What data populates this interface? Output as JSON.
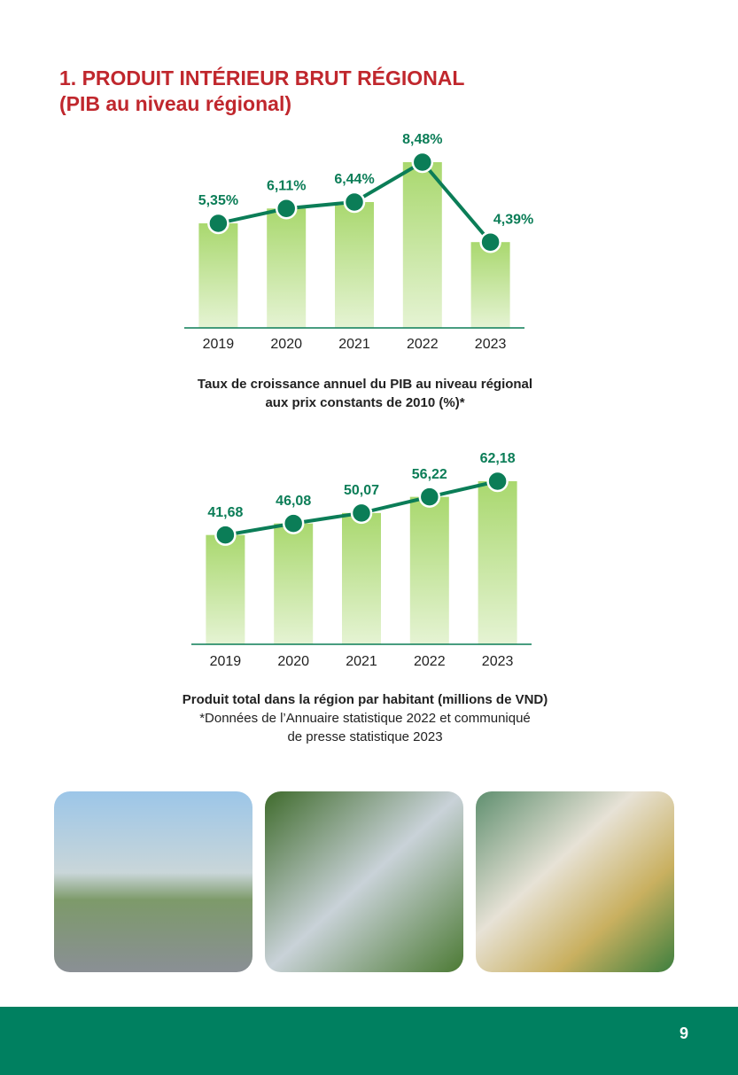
{
  "header": {
    "title": "1. PRODUIT INTÉRIEUR BRUT RÉGIONAL",
    "subtitle": "(PIB au niveau régional)"
  },
  "chart_data": [
    {
      "type": "bar-line",
      "categories": [
        "2019",
        "2020",
        "2021",
        "2022",
        "2023"
      ],
      "values": [
        5.35,
        6.11,
        6.44,
        8.48,
        4.39
      ],
      "value_labels": [
        "5,35%",
        "6,11%",
        "6,44%",
        "8,48%",
        "4,39%"
      ],
      "bar_color": "#a9d86e",
      "line_color": "#0b7d57",
      "caption": [
        "Taux de croissance annuel du PIB au niveau régional",
        "aux prix constants de 2010 (%)*"
      ]
    },
    {
      "type": "bar-line",
      "categories": [
        "2019",
        "2020",
        "2021",
        "2022",
        "2023"
      ],
      "values": [
        41.68,
        46.08,
        50.07,
        56.22,
        62.18
      ],
      "value_labels": [
        "41,68",
        "46,08",
        "50,07",
        "56,22",
        "62,18"
      ],
      "bar_color": "#a9d86e",
      "line_color": "#0b7d57",
      "caption": [
        "Produit total dans la région par habitant (millions de VND)"
      ],
      "note": [
        "*Données de l’Annuaire statistique 2022 et communiqué",
        "de presse statistique 2023"
      ]
    }
  ],
  "footer": {
    "page_number": "9"
  }
}
